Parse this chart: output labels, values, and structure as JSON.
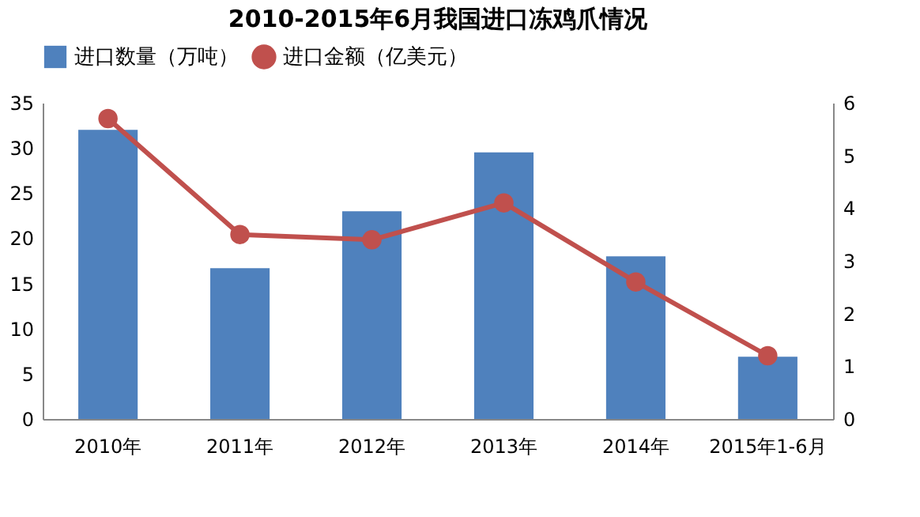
{
  "chart_data": {
    "type": "bar",
    "title": "2010-2015年6月我国进口冻鸡爪情况",
    "categories": [
      "2010年",
      "2011年",
      "2012年",
      "2013年",
      "2014年",
      "2015年1-6月"
    ],
    "series": [
      {
        "name": "进口数量（万吨）",
        "color": "#4f81bd",
        "values": [
          32,
          16.7,
          23,
          29.5,
          18,
          6.9
        ]
      },
      {
        "name": "进口金额（亿美元）",
        "type": "line",
        "axis": "y2",
        "color": "#c0504d",
        "values": [
          5.7,
          3.5,
          3.4,
          4.1,
          2.6,
          1.2
        ]
      }
    ],
    "ylim": [
      0,
      35
    ],
    "yticks": [
      0,
      5,
      10,
      15,
      20,
      25,
      30,
      35
    ],
    "y2lim": [
      0,
      6
    ],
    "y2ticks": [
      0,
      1,
      2,
      3,
      4,
      5,
      6
    ],
    "grid": false,
    "legend": "top",
    "marker": "circle",
    "line_style": "solid"
  }
}
